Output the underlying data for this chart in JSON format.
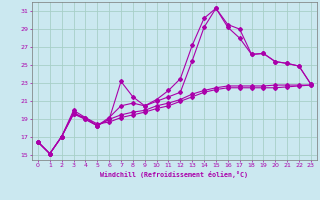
{
  "xlabel": "Windchill (Refroidissement éolien,°C)",
  "background_color": "#cbe8f0",
  "grid_color": "#a8cfc8",
  "line_color": "#aa00aa",
  "xlim": [
    -0.5,
    23.5
  ],
  "ylim": [
    14.5,
    32
  ],
  "xticks": [
    0,
    1,
    2,
    3,
    4,
    5,
    6,
    7,
    8,
    9,
    10,
    11,
    12,
    13,
    14,
    15,
    16,
    17,
    18,
    19,
    20,
    21,
    22,
    23
  ],
  "yticks": [
    15,
    17,
    19,
    21,
    23,
    25,
    27,
    29,
    31
  ],
  "series": [
    [
      16.5,
      15.2,
      17.1,
      19.6,
      19.2,
      18.5,
      18.7,
      19.2,
      19.5,
      19.8,
      20.2,
      20.5,
      21.0,
      21.5,
      22.0,
      22.3,
      22.5,
      22.5,
      22.5,
      22.5,
      22.5,
      22.6,
      22.7,
      22.8
    ],
    [
      16.5,
      15.2,
      17.1,
      19.6,
      19.0,
      18.3,
      19.0,
      19.5,
      19.8,
      20.0,
      20.5,
      20.8,
      21.2,
      21.8,
      22.2,
      22.5,
      22.7,
      22.7,
      22.7,
      22.7,
      22.8,
      22.8,
      22.8,
      22.8
    ],
    [
      16.5,
      15.2,
      17.1,
      20.0,
      19.2,
      18.3,
      19.2,
      20.5,
      20.8,
      20.5,
      21.0,
      21.5,
      22.0,
      25.5,
      29.2,
      31.3,
      29.5,
      29.0,
      26.2,
      26.3,
      25.4,
      25.2,
      24.9,
      22.9
    ],
    [
      16.5,
      15.2,
      17.1,
      19.8,
      19.0,
      18.3,
      19.0,
      23.2,
      21.5,
      20.5,
      21.2,
      22.2,
      23.5,
      27.2,
      30.2,
      31.3,
      29.2,
      28.0,
      26.2,
      26.3,
      25.4,
      25.2,
      24.9,
      22.9
    ]
  ]
}
